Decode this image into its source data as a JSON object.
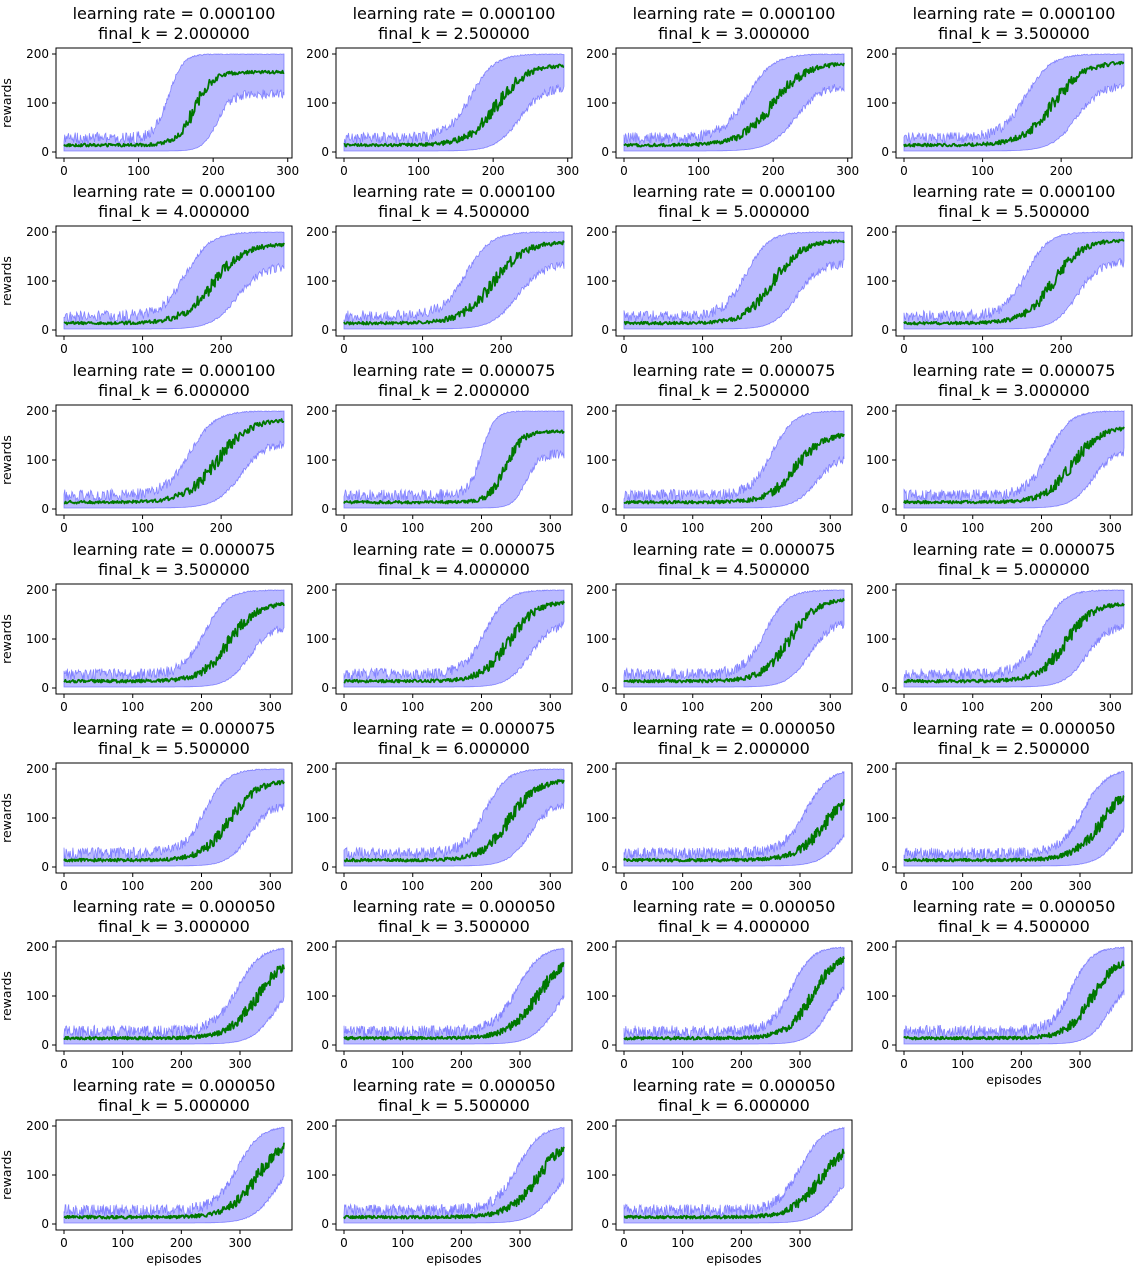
{
  "chart_data": {
    "type": "line",
    "layout_description": "grid of 7 rows x 4 columns of line plots with shaded band",
    "ylabel": "rewards",
    "xlabel": "episodes",
    "colors": {
      "mean_line": "#007700",
      "band": "#0000ff"
    },
    "ylim": [
      0,
      200
    ],
    "yticks": [
      0,
      100,
      200
    ],
    "plots": [
      {
        "title_lr": "learning rate = 0.000100",
        "title_k": "final_k = 2.000000",
        "x_max": 295,
        "xticks": [
          0,
          100,
          200,
          300
        ],
        "rise_mid": 175,
        "rise_width": 12,
        "plateau": 163
      },
      {
        "title_lr": "learning rate = 0.000100",
        "title_k": "final_k = 2.500000",
        "x_max": 295,
        "xticks": [
          0,
          100,
          200,
          300
        ],
        "rise_mid": 205,
        "rise_width": 20,
        "plateau": 178
      },
      {
        "title_lr": "learning rate = 0.000100",
        "title_k": "final_k = 3.000000",
        "x_max": 295,
        "xticks": [
          0,
          100,
          200,
          300
        ],
        "rise_mid": 200,
        "rise_width": 22,
        "plateau": 182
      },
      {
        "title_lr": "learning rate = 0.000100",
        "title_k": "final_k = 3.500000",
        "x_max": 280,
        "xticks": [
          0,
          100,
          200
        ],
        "rise_mid": 190,
        "rise_width": 20,
        "plateau": 184
      },
      {
        "title_lr": "learning rate = 0.000100",
        "title_k": "final_k = 4.000000",
        "x_max": 280,
        "xticks": [
          0,
          100,
          200
        ],
        "rise_mid": 190,
        "rise_width": 20,
        "plateau": 176
      },
      {
        "title_lr": "learning rate = 0.000100",
        "title_k": "final_k = 4.500000",
        "x_max": 280,
        "xticks": [
          0,
          100,
          200
        ],
        "rise_mid": 190,
        "rise_width": 20,
        "plateau": 180
      },
      {
        "title_lr": "learning rate = 0.000100",
        "title_k": "final_k = 5.000000",
        "x_max": 280,
        "xticks": [
          0,
          100,
          200
        ],
        "rise_mid": 190,
        "rise_width": 18,
        "plateau": 182
      },
      {
        "title_lr": "learning rate = 0.000100",
        "title_k": "final_k = 5.500000",
        "x_max": 280,
        "xticks": [
          0,
          100,
          200
        ],
        "rise_mid": 190,
        "rise_width": 18,
        "plateau": 184
      },
      {
        "title_lr": "learning rate = 0.000100",
        "title_k": "final_k = 6.000000",
        "x_max": 280,
        "xticks": [
          0,
          100,
          200
        ],
        "rise_mid": 195,
        "rise_width": 20,
        "plateau": 183
      },
      {
        "title_lr": "learning rate = 0.000075",
        "title_k": "final_k = 2.000000",
        "x_max": 320,
        "xticks": [
          0,
          100,
          200,
          300
        ],
        "rise_mid": 235,
        "rise_width": 12,
        "plateau": 158
      },
      {
        "title_lr": "learning rate = 0.000075",
        "title_k": "final_k = 2.500000",
        "x_max": 320,
        "xticks": [
          0,
          100,
          200,
          300
        ],
        "rise_mid": 250,
        "rise_width": 20,
        "plateau": 155
      },
      {
        "title_lr": "learning rate = 0.000075",
        "title_k": "final_k = 3.000000",
        "x_max": 320,
        "xticks": [
          0,
          100,
          200,
          300
        ],
        "rise_mid": 245,
        "rise_width": 20,
        "plateau": 168
      },
      {
        "title_lr": "learning rate = 0.000075",
        "title_k": "final_k = 3.500000",
        "x_max": 320,
        "xticks": [
          0,
          100,
          200,
          300
        ],
        "rise_mid": 240,
        "rise_width": 20,
        "plateau": 174
      },
      {
        "title_lr": "learning rate = 0.000075",
        "title_k": "final_k = 4.000000",
        "x_max": 320,
        "xticks": [
          0,
          100,
          200,
          300
        ],
        "rise_mid": 240,
        "rise_width": 20,
        "plateau": 178
      },
      {
        "title_lr": "learning rate = 0.000075",
        "title_k": "final_k = 4.500000",
        "x_max": 320,
        "xticks": [
          0,
          100,
          200,
          300
        ],
        "rise_mid": 240,
        "rise_width": 20,
        "plateau": 182
      },
      {
        "title_lr": "learning rate = 0.000075",
        "title_k": "final_k = 5.000000",
        "x_max": 320,
        "xticks": [
          0,
          100,
          200,
          300
        ],
        "rise_mid": 235,
        "rise_width": 20,
        "plateau": 174
      },
      {
        "title_lr": "learning rate = 0.000075",
        "title_k": "final_k = 5.500000",
        "x_max": 320,
        "xticks": [
          0,
          100,
          200,
          300
        ],
        "rise_mid": 240,
        "rise_width": 20,
        "plateau": 176
      },
      {
        "title_lr": "learning rate = 0.000075",
        "title_k": "final_k = 6.000000",
        "x_max": 320,
        "xticks": [
          0,
          100,
          200,
          300
        ],
        "rise_mid": 240,
        "rise_width": 20,
        "plateau": 178
      },
      {
        "title_lr": "learning rate = 0.000050",
        "title_k": "final_k = 2.000000",
        "x_max": 375,
        "xticks": [
          0,
          100,
          200,
          300
        ],
        "rise_mid": 345,
        "rise_width": 25,
        "plateau": 170
      },
      {
        "title_lr": "learning rate = 0.000050",
        "title_k": "final_k = 2.500000",
        "x_max": 375,
        "xticks": [
          0,
          100,
          200,
          300
        ],
        "rise_mid": 340,
        "rise_width": 25,
        "plateau": 180
      },
      {
        "title_lr": "learning rate = 0.000050",
        "title_k": "final_k = 3.000000",
        "x_max": 375,
        "xticks": [
          0,
          100,
          200,
          300
        ],
        "rise_mid": 330,
        "rise_width": 25,
        "plateau": 185
      },
      {
        "title_lr": "learning rate = 0.000050",
        "title_k": "final_k = 3.500000",
        "x_max": 375,
        "xticks": [
          0,
          100,
          200,
          300
        ],
        "rise_mid": 330,
        "rise_width": 25,
        "plateau": 188
      },
      {
        "title_lr": "learning rate = 0.000050",
        "title_k": "final_k = 4.000000",
        "x_max": 375,
        "xticks": [
          0,
          100,
          200,
          300
        ],
        "rise_mid": 320,
        "rise_width": 22,
        "plateau": 188
      },
      {
        "title_lr": "learning rate = 0.000050",
        "title_k": "final_k = 4.500000",
        "x_max": 375,
        "xticks": [
          0,
          100,
          200,
          300
        ],
        "rise_mid": 320,
        "rise_width": 22,
        "plateau": 180
      },
      {
        "title_lr": "learning rate = 0.000050",
        "title_k": "final_k = 5.000000",
        "x_max": 375,
        "xticks": [
          0,
          100,
          200,
          300
        ],
        "rise_mid": 330,
        "rise_width": 25,
        "plateau": 182
      },
      {
        "title_lr": "learning rate = 0.000050",
        "title_k": "final_k = 5.500000",
        "x_max": 375,
        "xticks": [
          0,
          100,
          200,
          300
        ],
        "rise_mid": 330,
        "rise_width": 25,
        "plateau": 178
      },
      {
        "title_lr": "learning rate = 0.000050",
        "title_k": "final_k = 6.000000",
        "x_max": 375,
        "xticks": [
          0,
          100,
          200,
          300
        ],
        "rise_mid": 335,
        "rise_width": 25,
        "plateau": 172
      }
    ]
  }
}
